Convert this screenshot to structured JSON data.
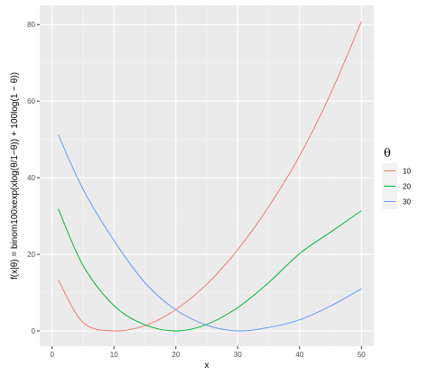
{
  "chart_data": {
    "type": "line",
    "xlabel": "x",
    "ylabel": "f(x|θ) = binom100xexp(xlog(θ/1−θ)) + 100log(1 − θ))",
    "xlim": [
      -2,
      52
    ],
    "ylim": [
      -4,
      85
    ],
    "x_ticks": [
      0,
      10,
      20,
      30,
      40,
      50
    ],
    "y_ticks": [
      0,
      20,
      40,
      60,
      80
    ],
    "grid": true,
    "legend": {
      "title": "θ",
      "position": "right"
    },
    "series": [
      {
        "name": "10",
        "color": "#F8766D",
        "x": [
          1,
          5,
          10,
          15,
          20,
          25,
          30,
          35,
          40,
          45,
          50
        ],
        "y": [
          13.3,
          2.2,
          0.0,
          1.4,
          5.6,
          12.2,
          21.2,
          32.4,
          45.7,
          61.9,
          80.8
        ]
      },
      {
        "name": "20",
        "color": "#00BA38",
        "x": [
          1,
          5,
          10,
          15,
          20,
          25,
          30,
          35,
          40,
          45,
          50
        ],
        "y": [
          31.9,
          17.1,
          6.6,
          1.6,
          0.0,
          1.7,
          6.1,
          12.6,
          20.2,
          25.8,
          31.4
        ]
      },
      {
        "name": "30",
        "color": "#619CFF",
        "x": [
          1,
          5,
          10,
          15,
          20,
          25,
          30,
          35,
          40,
          45,
          50
        ],
        "y": [
          51.2,
          37.0,
          23.6,
          12.6,
          5.5,
          1.5,
          0.0,
          0.9,
          2.9,
          6.5,
          11.0
        ]
      }
    ]
  }
}
